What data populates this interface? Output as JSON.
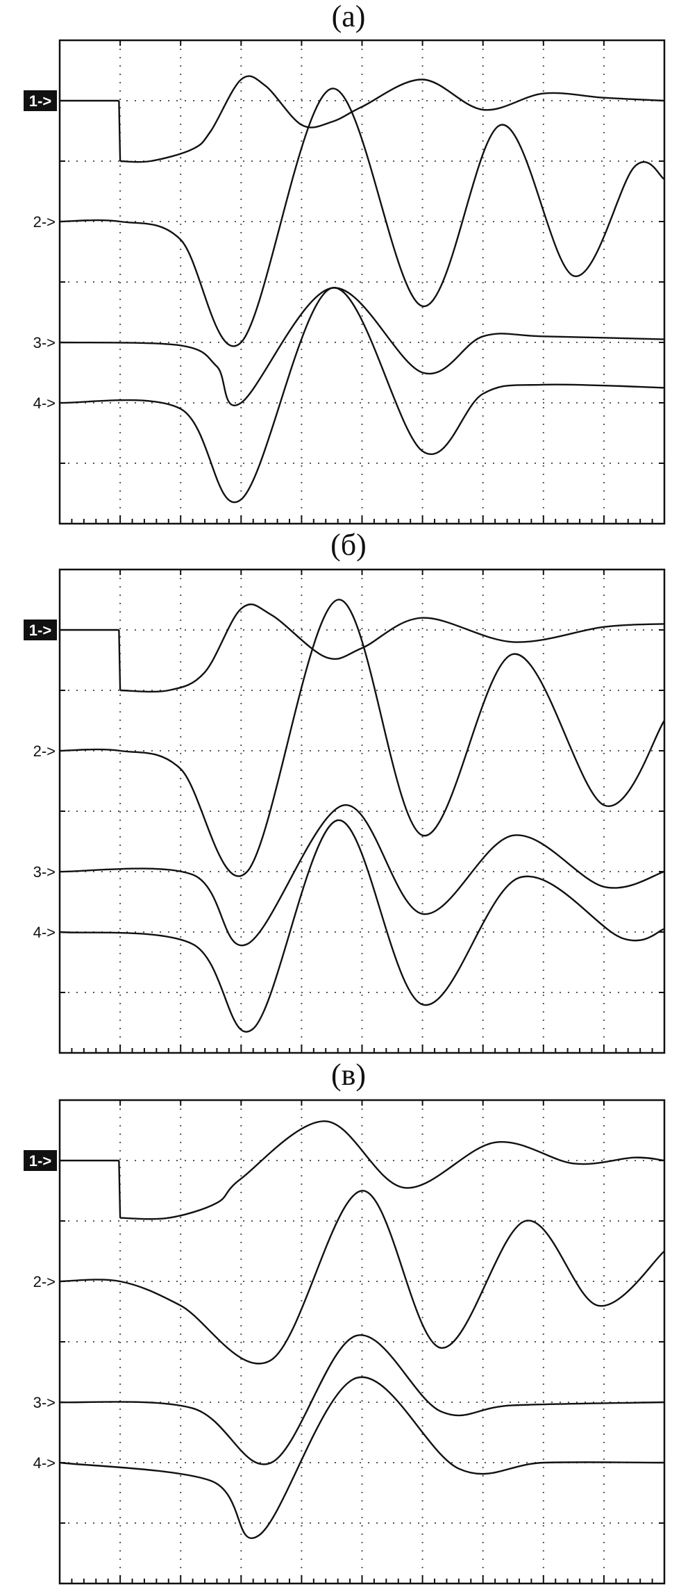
{
  "panels": [
    {
      "title": "(а)"
    },
    {
      "title": "(б)"
    },
    {
      "title": "(в)"
    }
  ],
  "chart_data": [
    {
      "type": "line",
      "title": "(а)",
      "grid": true,
      "divisions": {
        "x": 10,
        "y": 8
      },
      "xlim": [
        0,
        10
      ],
      "channels": [
        {
          "marker": "1->",
          "offset_div": 1.0,
          "highlighted": true,
          "points": [
            [
              0,
              0
            ],
            [
              0.98,
              0
            ],
            [
              1.0,
              -1.0
            ],
            [
              1.5,
              -1.0
            ],
            [
              2.2,
              -0.8
            ],
            [
              2.5,
              -0.5
            ],
            [
              3.0,
              0.35
            ],
            [
              3.4,
              0.25
            ],
            [
              4.0,
              -0.4
            ],
            [
              4.5,
              -0.35
            ],
            [
              5.0,
              -0.1
            ],
            [
              6.0,
              0.35
            ],
            [
              7.0,
              -0.15
            ],
            [
              8.0,
              0.12
            ],
            [
              9.0,
              0.05
            ],
            [
              10.0,
              0.0
            ]
          ]
        },
        {
          "marker": "2->",
          "offset_div": 3.0,
          "points": [
            [
              0,
              0
            ],
            [
              1.0,
              0
            ],
            [
              2.0,
              -0.3
            ],
            [
              3.0,
              -2.0
            ],
            [
              4.5,
              2.2
            ],
            [
              6.0,
              -1.4
            ],
            [
              7.3,
              1.6
            ],
            [
              8.5,
              -0.9
            ],
            [
              9.5,
              0.9
            ],
            [
              10.0,
              0.7
            ]
          ]
        },
        {
          "marker": "3->",
          "offset_div": 5.0,
          "points": [
            [
              0,
              0
            ],
            [
              2.0,
              -0.05
            ],
            [
              2.6,
              -0.4
            ],
            [
              3.0,
              -1.0
            ],
            [
              4.5,
              0.9
            ],
            [
              6.0,
              -0.5
            ],
            [
              7.0,
              0.1
            ],
            [
              8.0,
              0.1
            ],
            [
              10.0,
              0.05
            ]
          ]
        },
        {
          "marker": "4->",
          "offset_div": 6.0,
          "points": [
            [
              0,
              0
            ],
            [
              2.0,
              -0.1
            ],
            [
              3.0,
              -1.6
            ],
            [
              4.5,
              1.9
            ],
            [
              6.0,
              -0.8
            ],
            [
              7.0,
              0.15
            ],
            [
              8.0,
              0.3
            ],
            [
              10.0,
              0.25
            ]
          ]
        }
      ]
    },
    {
      "type": "line",
      "title": "(б)",
      "grid": true,
      "divisions": {
        "x": 10,
        "y": 8
      },
      "xlim": [
        0,
        10
      ],
      "channels": [
        {
          "marker": "1->",
          "offset_div": 1.0,
          "highlighted": true,
          "points": [
            [
              0,
              0
            ],
            [
              0.98,
              0
            ],
            [
              1.0,
              -1.0
            ],
            [
              1.8,
              -1.0
            ],
            [
              2.4,
              -0.7
            ],
            [
              3.0,
              0.35
            ],
            [
              3.5,
              0.25
            ],
            [
              4.4,
              -0.45
            ],
            [
              5.0,
              -0.3
            ],
            [
              6.0,
              0.2
            ],
            [
              7.5,
              -0.2
            ],
            [
              9.0,
              0.05
            ],
            [
              10.0,
              0.1
            ]
          ]
        },
        {
          "marker": "2->",
          "offset_div": 3.0,
          "points": [
            [
              0,
              0
            ],
            [
              1.0,
              0
            ],
            [
              2.0,
              -0.3
            ],
            [
              3.1,
              -2.0
            ],
            [
              4.6,
              2.5
            ],
            [
              6.0,
              -1.4
            ],
            [
              7.5,
              1.6
            ],
            [
              9.0,
              -0.9
            ],
            [
              10.0,
              0.5
            ]
          ]
        },
        {
          "marker": "3->",
          "offset_div": 5.0,
          "points": [
            [
              0,
              0
            ],
            [
              2.2,
              -0.05
            ],
            [
              3.1,
              -1.2
            ],
            [
              4.7,
              1.1
            ],
            [
              6.0,
              -0.7
            ],
            [
              7.5,
              0.6
            ],
            [
              9.0,
              -0.25
            ],
            [
              10.0,
              0.0
            ]
          ]
        },
        {
          "marker": "4->",
          "offset_div": 6.0,
          "points": [
            [
              0,
              0
            ],
            [
              2.2,
              -0.2
            ],
            [
              3.2,
              -1.6
            ],
            [
              4.6,
              1.85
            ],
            [
              6.0,
              -1.2
            ],
            [
              7.6,
              0.9
            ],
            [
              9.3,
              -0.1
            ],
            [
              10.0,
              0.05
            ]
          ]
        }
      ]
    },
    {
      "type": "line",
      "title": "(в)",
      "grid": true,
      "divisions": {
        "x": 10,
        "y": 8
      },
      "xlim": [
        0,
        10
      ],
      "channels": [
        {
          "marker": "1->",
          "offset_div": 1.0,
          "highlighted": true,
          "points": [
            [
              0,
              0
            ],
            [
              0.98,
              0
            ],
            [
              1.0,
              -0.95
            ],
            [
              1.8,
              -0.95
            ],
            [
              2.6,
              -0.7
            ],
            [
              3.0,
              -0.3
            ],
            [
              4.4,
              0.65
            ],
            [
              5.7,
              -0.45
            ],
            [
              7.2,
              0.3
            ],
            [
              8.5,
              -0.05
            ],
            [
              9.5,
              0.05
            ],
            [
              10.0,
              0.0
            ]
          ]
        },
        {
          "marker": "2->",
          "offset_div": 3.0,
          "points": [
            [
              0,
              0
            ],
            [
              1.0,
              0
            ],
            [
              2.0,
              -0.4
            ],
            [
              3.5,
              -1.3
            ],
            [
              5.0,
              1.5
            ],
            [
              6.3,
              -1.1
            ],
            [
              7.7,
              1.0
            ],
            [
              8.9,
              -0.4
            ],
            [
              10.0,
              0.5
            ]
          ]
        },
        {
          "marker": "3->",
          "offset_div": 5.0,
          "points": [
            [
              0,
              0
            ],
            [
              2.2,
              -0.1
            ],
            [
              3.5,
              -1.0
            ],
            [
              4.9,
              1.1
            ],
            [
              6.3,
              -0.15
            ],
            [
              7.5,
              -0.05
            ],
            [
              10.0,
              0.0
            ]
          ]
        },
        {
          "marker": "4->",
          "offset_div": 6.0,
          "points": [
            [
              0,
              0
            ],
            [
              2.5,
              -0.3
            ],
            [
              3.3,
              -1.2
            ],
            [
              4.9,
              1.4
            ],
            [
              6.6,
              -0.1
            ],
            [
              8.0,
              0.0
            ],
            [
              10.0,
              0.0
            ]
          ]
        }
      ]
    }
  ]
}
